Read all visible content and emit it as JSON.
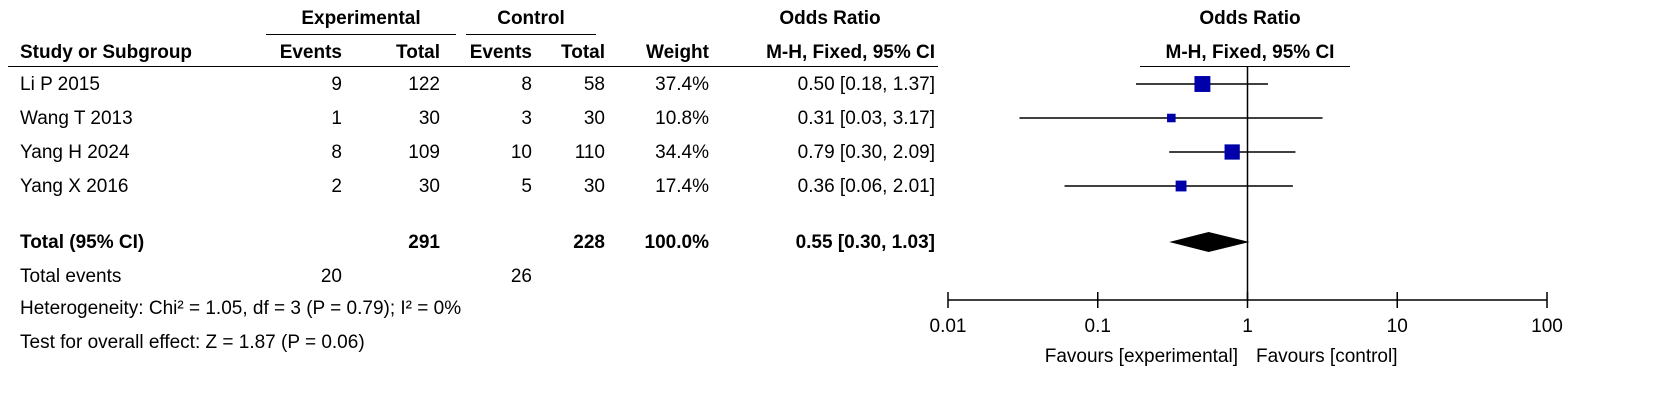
{
  "headers": {
    "study": "Study or Subgroup",
    "experimental": "Experimental",
    "control": "Control",
    "events": "Events",
    "total": "Total",
    "weight": "Weight",
    "or_left": "Odds Ratio",
    "or_left_method": "M-H, Fixed, 95% CI",
    "or_right": "Odds Ratio",
    "or_right_method": "M-H, Fixed, 95% CI"
  },
  "studies": [
    {
      "name": "Li P 2015",
      "exp_events": "9",
      "exp_total": "122",
      "ctrl_events": "8",
      "ctrl_total": "58",
      "weight": "37.4%",
      "ci_text": "0.50 [0.18, 1.37]"
    },
    {
      "name": "Wang T 2013",
      "exp_events": "1",
      "exp_total": "30",
      "ctrl_events": "3",
      "ctrl_total": "30",
      "weight": "10.8%",
      "ci_text": "0.31 [0.03, 3.17]"
    },
    {
      "name": "Yang H 2024",
      "exp_events": "8",
      "exp_total": "109",
      "ctrl_events": "10",
      "ctrl_total": "110",
      "weight": "34.4%",
      "ci_text": "0.79 [0.30, 2.09]"
    },
    {
      "name": "Yang X 2016",
      "exp_events": "2",
      "exp_total": "30",
      "ctrl_events": "5",
      "ctrl_total": "30",
      "weight": "17.4%",
      "ci_text": "0.36 [0.06, 2.01]"
    }
  ],
  "total": {
    "label": "Total (95% CI)",
    "exp_total": "291",
    "ctrl_total": "228",
    "weight": "100.0%",
    "ci_text": "0.55 [0.30, 1.03]"
  },
  "total_events": {
    "label": "Total events",
    "exp": "20",
    "ctrl": "26"
  },
  "heterogeneity": "Heterogeneity: Chi² = 1.05, df = 3 (P = 0.79); I² = 0%",
  "overall_effect": "Test for overall effect: Z = 1.87 (P = 0.06)",
  "axis": {
    "ticks": [
      0.01,
      0.1,
      1,
      10,
      100
    ],
    "tick_labels": [
      "0.01",
      "0.1",
      "1",
      "10",
      "100"
    ],
    "favours_left": "Favours [experimental]",
    "favours_right": "Favours [control]"
  },
  "chart_data": {
    "type": "scatter",
    "xscale": "log",
    "xlim": [
      0.01,
      100
    ],
    "reference_line": 1,
    "points": [
      {
        "study": "Li P 2015",
        "or": 0.5,
        "lo": 0.18,
        "hi": 1.37,
        "weight": 37.4
      },
      {
        "study": "Wang T 2013",
        "or": 0.31,
        "lo": 0.03,
        "hi": 3.17,
        "weight": 10.8
      },
      {
        "study": "Yang H 2024",
        "or": 0.79,
        "lo": 0.3,
        "hi": 2.09,
        "weight": 34.4
      },
      {
        "study": "Yang X 2016",
        "or": 0.36,
        "lo": 0.06,
        "hi": 2.01,
        "weight": 17.4
      }
    ],
    "pooled": {
      "or": 0.55,
      "lo": 0.3,
      "hi": 1.03
    },
    "colors": {
      "square": "#0000aa",
      "diamond": "#000000"
    }
  }
}
